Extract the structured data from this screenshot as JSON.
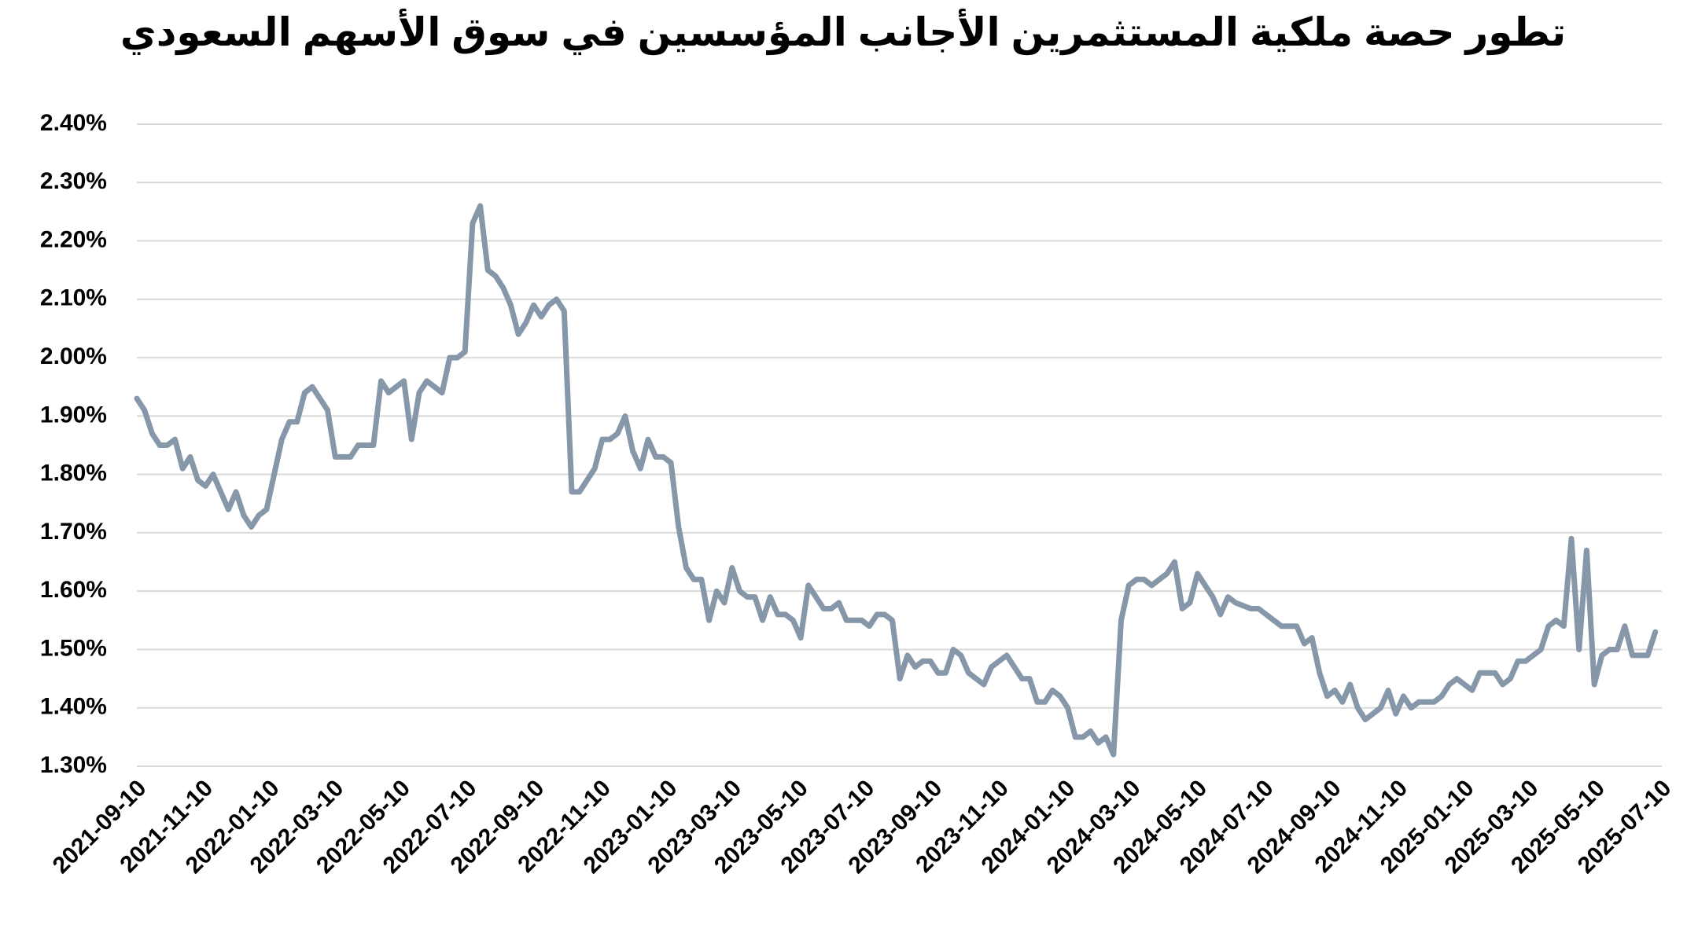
{
  "chart_data": {
    "type": "line",
    "title": "تطور حصة ملكية المستثمرين الأجانب المؤسسين في سوق الأسهم السعودي",
    "x": [
      "2021-09-10",
      "2021-09-17",
      "2021-09-24",
      "2021-10-01",
      "2021-10-08",
      "2021-10-15",
      "2021-10-22",
      "2021-10-29",
      "2021-11-05",
      "2021-11-12",
      "2021-11-19",
      "2021-11-26",
      "2021-12-03",
      "2021-12-10",
      "2021-12-17",
      "2021-12-24",
      "2021-12-31",
      "2022-01-07",
      "2022-01-14",
      "2022-01-21",
      "2022-01-28",
      "2022-02-04",
      "2022-02-11",
      "2022-02-18",
      "2022-02-25",
      "2022-03-04",
      "2022-03-11",
      "2022-03-18",
      "2022-03-25",
      "2022-04-01",
      "2022-04-08",
      "2022-04-15",
      "2022-04-22",
      "2022-04-29",
      "2022-05-06",
      "2022-05-13",
      "2022-05-20",
      "2022-05-27",
      "2022-06-03",
      "2022-06-10",
      "2022-06-17",
      "2022-06-24",
      "2022-07-01",
      "2022-07-08",
      "2022-07-15",
      "2022-07-22",
      "2022-07-29",
      "2022-08-05",
      "2022-08-12",
      "2022-08-19",
      "2022-08-26",
      "2022-09-02",
      "2022-09-09",
      "2022-09-16",
      "2022-09-23",
      "2022-09-30",
      "2022-10-07",
      "2022-10-14",
      "2022-10-21",
      "2022-10-28",
      "2022-11-04",
      "2022-11-11",
      "2022-11-18",
      "2022-11-25",
      "2022-12-02",
      "2022-12-09",
      "2022-12-16",
      "2022-12-23",
      "2022-12-30",
      "2023-01-06",
      "2023-01-13",
      "2023-01-20",
      "2023-01-27",
      "2023-02-03",
      "2023-02-10",
      "2023-02-17",
      "2023-02-24",
      "2023-03-03",
      "2023-03-10",
      "2023-03-17",
      "2023-03-24",
      "2023-03-31",
      "2023-04-07",
      "2023-04-14",
      "2023-04-21",
      "2023-04-28",
      "2023-05-05",
      "2023-05-12",
      "2023-05-19",
      "2023-05-26",
      "2023-06-02",
      "2023-06-09",
      "2023-06-16",
      "2023-06-23",
      "2023-06-30",
      "2023-07-07",
      "2023-07-14",
      "2023-07-21",
      "2023-07-28",
      "2023-08-04",
      "2023-08-11",
      "2023-08-18",
      "2023-08-25",
      "2023-09-01",
      "2023-09-08",
      "2023-09-15",
      "2023-09-22",
      "2023-09-29",
      "2023-10-06",
      "2023-10-13",
      "2023-10-20",
      "2023-10-27",
      "2023-11-03",
      "2023-11-10",
      "2023-11-17",
      "2023-11-24",
      "2023-12-01",
      "2023-12-08",
      "2023-12-15",
      "2023-12-22",
      "2023-12-29",
      "2024-01-05",
      "2024-01-12",
      "2024-01-19",
      "2024-01-26",
      "2024-02-02",
      "2024-02-09",
      "2024-02-16",
      "2024-02-23",
      "2024-03-01",
      "2024-03-08",
      "2024-03-15",
      "2024-03-22",
      "2024-03-29",
      "2024-04-05",
      "2024-04-12",
      "2024-04-19",
      "2024-04-26",
      "2024-05-03",
      "2024-05-10",
      "2024-05-17",
      "2024-05-24",
      "2024-05-31",
      "2024-06-07",
      "2024-06-14",
      "2024-06-21",
      "2024-06-28",
      "2024-07-05",
      "2024-07-12",
      "2024-07-19",
      "2024-07-26",
      "2024-08-02",
      "2024-08-09",
      "2024-08-16",
      "2024-08-23",
      "2024-08-30",
      "2024-09-06",
      "2024-09-13",
      "2024-09-20",
      "2024-09-27",
      "2024-10-04",
      "2024-10-11",
      "2024-10-18",
      "2024-10-25",
      "2024-11-01",
      "2024-11-08",
      "2024-11-15",
      "2024-11-22",
      "2024-11-29",
      "2024-12-06",
      "2024-12-13",
      "2024-12-20",
      "2024-12-27",
      "2025-01-03",
      "2025-01-10",
      "2025-01-17",
      "2025-01-24",
      "2025-01-31",
      "2025-02-07",
      "2025-02-14",
      "2025-02-21",
      "2025-02-28",
      "2025-03-07",
      "2025-03-14",
      "2025-03-21",
      "2025-03-28",
      "2025-04-04",
      "2025-04-11",
      "2025-04-18",
      "2025-04-25",
      "2025-05-02",
      "2025-05-09",
      "2025-05-16",
      "2025-05-23",
      "2025-05-30",
      "2025-06-06",
      "2025-06-13",
      "2025-06-20",
      "2025-06-27",
      "2025-07-04"
    ],
    "series": [
      {
        "color": "#8597a8",
        "values": [
          1.93,
          1.91,
          1.87,
          1.85,
          1.85,
          1.86,
          1.81,
          1.83,
          1.79,
          1.78,
          1.8,
          1.77,
          1.74,
          1.77,
          1.73,
          1.71,
          1.73,
          1.74,
          1.8,
          1.86,
          1.89,
          1.89,
          1.94,
          1.95,
          1.93,
          1.91,
          1.83,
          1.83,
          1.83,
          1.85,
          1.85,
          1.85,
          1.96,
          1.94,
          1.95,
          1.96,
          1.86,
          1.94,
          1.96,
          1.95,
          1.94,
          2.0,
          2.0,
          2.01,
          2.23,
          2.26,
          2.15,
          2.14,
          2.12,
          2.09,
          2.04,
          2.06,
          2.09,
          2.07,
          2.09,
          2.1,
          2.08,
          1.77,
          1.77,
          1.79,
          1.81,
          1.86,
          1.86,
          1.87,
          1.9,
          1.84,
          1.81,
          1.86,
          1.83,
          1.83,
          1.82,
          1.71,
          1.64,
          1.62,
          1.62,
          1.55,
          1.6,
          1.58,
          1.64,
          1.6,
          1.59,
          1.59,
          1.55,
          1.59,
          1.56,
          1.56,
          1.55,
          1.52,
          1.61,
          1.59,
          1.57,
          1.57,
          1.58,
          1.55,
          1.55,
          1.55,
          1.54,
          1.56,
          1.56,
          1.55,
          1.45,
          1.49,
          1.47,
          1.48,
          1.48,
          1.46,
          1.46,
          1.5,
          1.49,
          1.46,
          1.45,
          1.44,
          1.47,
          1.48,
          1.49,
          1.47,
          1.45,
          1.45,
          1.41,
          1.41,
          1.43,
          1.42,
          1.4,
          1.35,
          1.35,
          1.36,
          1.34,
          1.35,
          1.32,
          1.55,
          1.61,
          1.62,
          1.62,
          1.61,
          1.62,
          1.63,
          1.65,
          1.57,
          1.58,
          1.63,
          1.61,
          1.59,
          1.56,
          1.59,
          1.58,
          1.575,
          1.57,
          1.57,
          1.56,
          1.55,
          1.54,
          1.54,
          1.54,
          1.51,
          1.52,
          1.46,
          1.42,
          1.43,
          1.41,
          1.44,
          1.4,
          1.38,
          1.39,
          1.4,
          1.43,
          1.39,
          1.42,
          1.4,
          1.41,
          1.41,
          1.41,
          1.42,
          1.44,
          1.45,
          1.44,
          1.43,
          1.46,
          1.46,
          1.46,
          1.44,
          1.45,
          1.48,
          1.48,
          1.49,
          1.5,
          1.54,
          1.55,
          1.54,
          1.69,
          1.5,
          1.67,
          1.44,
          1.49,
          1.5,
          1.5,
          1.54,
          1.49,
          1.49,
          1.49,
          1.53
        ]
      }
    ],
    "xlim": [
      "2021-09-10",
      "2025-07-10"
    ],
    "xticks": [
      "2021-09-10",
      "2021-11-10",
      "2022-01-10",
      "2022-03-10",
      "2022-05-10",
      "2022-07-10",
      "2022-09-10",
      "2022-11-10",
      "2023-01-10",
      "2023-03-10",
      "2023-05-10",
      "2023-07-10",
      "2023-09-10",
      "2023-11-10",
      "2024-01-10",
      "2024-03-10",
      "2024-05-10",
      "2024-07-10",
      "2024-09-10",
      "2024-11-10",
      "2025-01-10",
      "2025-03-10",
      "2025-05-10",
      "2025-07-10"
    ],
    "ylim": [
      1.3,
      2.4
    ],
    "yticks": [
      {
        "value": 1.3,
        "label": "1.30%"
      },
      {
        "value": 1.4,
        "label": "1.40%"
      },
      {
        "value": 1.5,
        "label": "1.50%"
      },
      {
        "value": 1.6,
        "label": "1.60%"
      },
      {
        "value": 1.7,
        "label": "1.70%"
      },
      {
        "value": 1.8,
        "label": "1.80%"
      },
      {
        "value": 1.9,
        "label": "1.90%"
      },
      {
        "value": 2.0,
        "label": "2.00%"
      },
      {
        "value": 2.1,
        "label": "2.10%"
      },
      {
        "value": 2.2,
        "label": "2.20%"
      },
      {
        "value": 2.3,
        "label": "2.30%"
      },
      {
        "value": 2.4,
        "label": "2.40%"
      }
    ],
    "grid": true
  }
}
